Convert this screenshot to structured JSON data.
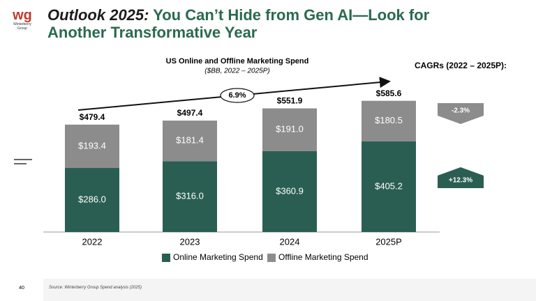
{
  "header": {
    "title_lead": "Outlook 2025:",
    "title_rest": "You Can’t Hide from Gen AI—Look for Another Transformative Year",
    "logo_mark": "wg",
    "logo_text": "Winterberry Group",
    "page_number": "40",
    "source": "Source: Winterberry Group Spend analysis (2025)"
  },
  "chart_data": {
    "type": "bar",
    "stacked": true,
    "title": "US Online and Offline Marketing Spend",
    "subtitle": "($BB, 2022 – 2025P)",
    "categories": [
      "2022",
      "2023",
      "2024",
      "2025P"
    ],
    "series": [
      {
        "name": "Online Marketing Spend",
        "color": "#2b5e52",
        "values": [
          286.0,
          316.0,
          360.9,
          405.2
        ],
        "value_labels": [
          "$286.0",
          "$316.0",
          "$360.9",
          "$405.2"
        ]
      },
      {
        "name": "Offline Marketing Spend",
        "color": "#8c8c8c",
        "values": [
          193.4,
          181.4,
          191.0,
          180.5
        ],
        "value_labels": [
          "$193.4",
          "$181.4",
          "$191.0",
          "$180.5"
        ]
      }
    ],
    "totals": {
      "values": [
        479.4,
        497.4,
        551.9,
        585.6
      ],
      "value_labels": [
        "$479.4",
        "$497.4",
        "$551.9",
        "$585.6"
      ]
    },
    "growth_label": "6.9%",
    "cagr": {
      "title": "CAGRs (2022 – 2025P):",
      "items": [
        {
          "value": -2.3,
          "label": "-2.3%",
          "color": "#8c8c8c"
        },
        {
          "value": 12.3,
          "label": "+12.3%",
          "color": "#2b5e52"
        }
      ]
    },
    "ylim": [
      0,
      650
    ]
  }
}
